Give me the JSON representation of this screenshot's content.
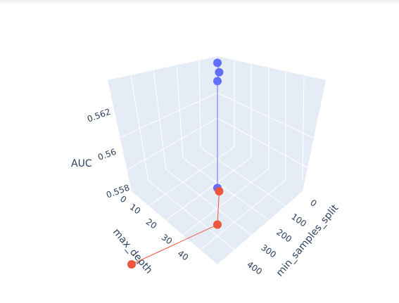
{
  "chart_data": {
    "type": "scatter3d",
    "title": "",
    "x_axis": {
      "label": "min_samples_split",
      "ticks": [
        "0",
        "100",
        "200",
        "300",
        "400"
      ]
    },
    "y_axis": {
      "label": "max_depth",
      "ticks": [
        "0",
        "10",
        "20",
        "30",
        "40"
      ]
    },
    "z_axis": {
      "label": "AUC",
      "ticks": [
        "0.558",
        "0.56",
        "0.562"
      ],
      "range": [
        0.5575,
        0.5645
      ]
    },
    "series": [
      {
        "color": "#636efa",
        "points": [
          {
            "min_samples_split": 0,
            "max_depth": 0,
            "AUC": 0.5641
          },
          {
            "min_samples_split": 10,
            "max_depth": 0,
            "AUC": 0.5638
          },
          {
            "min_samples_split": 0,
            "max_depth": 0,
            "AUC": 0.5635
          },
          {
            "min_samples_split": 0,
            "max_depth": 0,
            "AUC": 0.56
          }
        ]
      },
      {
        "color": "#ef553b",
        "points": [
          {
            "min_samples_split": 10,
            "max_depth": 0,
            "AUC": 0.5599
          },
          {
            "min_samples_split": 0,
            "max_depth": 0,
            "AUC": 0.5588
          },
          {
            "min_samples_split": 0,
            "max_depth": 50,
            "AUC": 0.5575
          }
        ]
      }
    ],
    "scene_background": "#e5ecf6",
    "grid": true
  }
}
